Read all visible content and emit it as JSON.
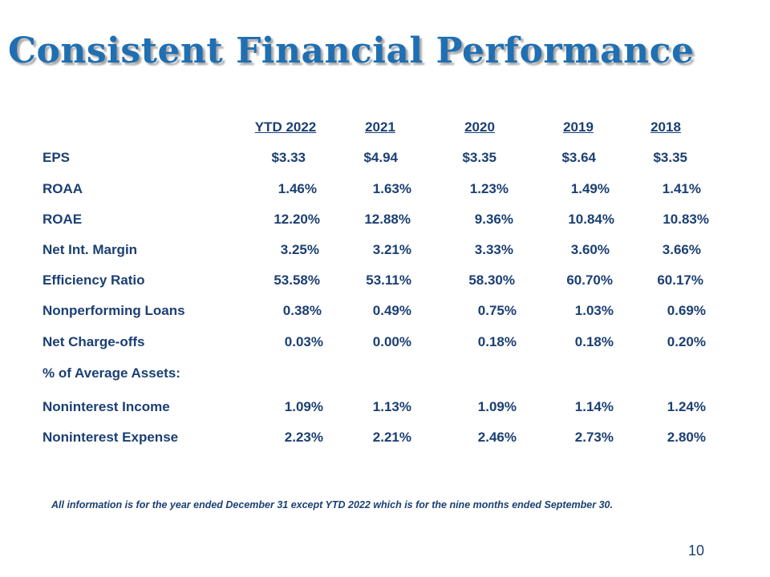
{
  "slide": {
    "title": "Consistent Financial Performance",
    "footnote": "All information is for the year ended December 31 except YTD 2022 which is for the nine months ended September 30.",
    "page_number": "10"
  },
  "table": {
    "columns": [
      "YTD 2022",
      "2021",
      "2020",
      "2019",
      "2018"
    ],
    "rows": [
      {
        "label": "EPS",
        "values": [
          "$3.33",
          "$4.94",
          "$3.35",
          "$3.64",
          "$3.35"
        ]
      },
      {
        "label": "ROAA",
        "values": [
          "1.46%",
          "1.63%",
          "1.23%",
          "1.49%",
          "1.41%"
        ]
      },
      {
        "label": "ROAE",
        "values": [
          "12.20%",
          "12.88%",
          "9.36%",
          "10.84%",
          "10.83%"
        ]
      },
      {
        "label": "Net Int. Margin",
        "values": [
          "3.25%",
          "3.21%",
          "3.33%",
          "3.60%",
          "3.66%"
        ]
      },
      {
        "label": "Efficiency Ratio",
        "values": [
          "53.58%",
          "53.11%",
          "58.30%",
          "60.70%",
          "60.17%"
        ]
      },
      {
        "label": "Nonperforming Loans",
        "values": [
          "0.38%",
          "0.49%",
          "0.75%",
          "1.03%",
          "0.69%"
        ]
      },
      {
        "label": "Net Charge-offs",
        "values": [
          "0.03%",
          "0.00%",
          "0.18%",
          "0.18%",
          "0.20%"
        ]
      },
      {
        "label": "% of Average Assets:",
        "values": []
      },
      {
        "label": "Noninterest Income",
        "values": [
          "1.09%",
          "1.13%",
          "1.09%",
          "1.14%",
          "1.24%"
        ]
      },
      {
        "label": "Noninterest Expense",
        "values": [
          "2.23%",
          "2.21%",
          "2.46%",
          "2.73%",
          "2.80%"
        ]
      }
    ]
  }
}
